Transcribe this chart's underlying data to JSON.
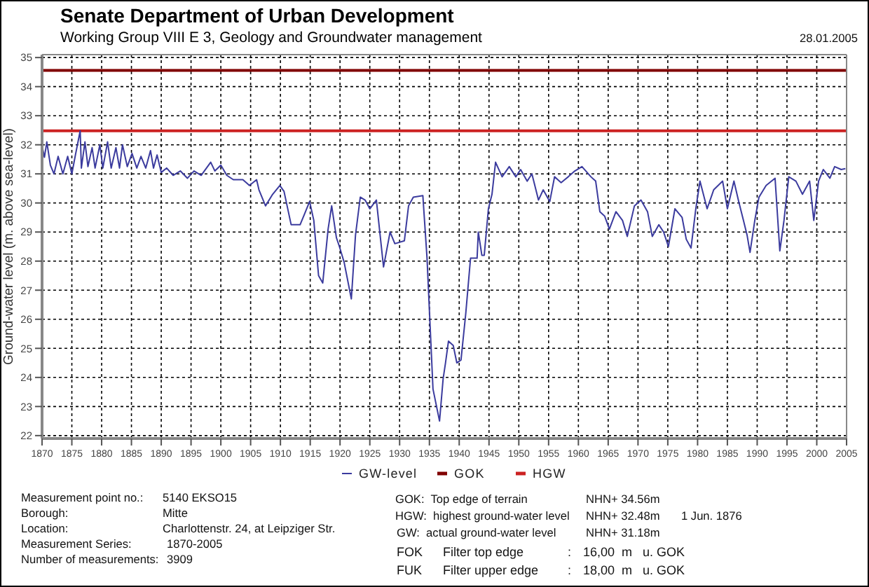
{
  "chart_data": {
    "type": "line",
    "title": "Senate Department of  Urban Development",
    "subtitle": "Working Group VIII E 3, Geology and Groundwater management",
    "ylabel": "Ground-water level (m. above sea-level)",
    "xlim": [
      1870,
      2005
    ],
    "xticks": [
      1870,
      1875,
      1880,
      1885,
      1890,
      1895,
      1900,
      1905,
      1910,
      1915,
      1920,
      1925,
      1930,
      1935,
      1940,
      1945,
      1950,
      1955,
      1960,
      1965,
      1970,
      1975,
      1980,
      1985,
      1990,
      1995,
      2000,
      2005
    ],
    "ylim": [
      21.9,
      35.1
    ],
    "yticks": [
      22,
      23,
      24,
      25,
      26,
      27,
      28,
      29,
      30,
      31,
      32,
      33,
      34,
      35
    ],
    "grid": true,
    "legend": "bottom",
    "marker": "none",
    "line_style": "solid",
    "series": [
      {
        "name": "GW-level",
        "color": "#3b3b9e",
        "x": [
          1870,
          1870.4,
          1870.8,
          1871.4,
          1872,
          1872.7,
          1873.5,
          1874.3,
          1875,
          1875.6,
          1876.4,
          1876.6,
          1877.2,
          1877.7,
          1878.4,
          1878.9,
          1879.7,
          1880.2,
          1881,
          1881.6,
          1882.4,
          1883,
          1883.5,
          1884.3,
          1885.1,
          1885.9,
          1886.6,
          1887.4,
          1888.2,
          1888.7,
          1889.3,
          1890,
          1890.9,
          1892,
          1893.2,
          1894.4,
          1895.5,
          1896.7,
          1898.3,
          1899,
          1900,
          1901,
          1902.1,
          1903.7,
          1904.8,
          1906,
          1906.4,
          1907.5,
          1908.7,
          1909.9,
          1910.6,
          1911.8,
          1913.3,
          1914.1,
          1914.9,
          1915.6,
          1916.4,
          1917.1,
          1918,
          1918.6,
          1919.4,
          1919.9,
          1920.7,
          1921.9,
          1922.6,
          1923.4,
          1924.2,
          1925,
          1926.1,
          1927.3,
          1928.4,
          1929.2,
          1930.8,
          1931.5,
          1932.3,
          1933.9,
          1934.6,
          1935.6,
          1936.7,
          1937.3,
          1937.7,
          1938.2,
          1939,
          1939.6,
          1940.3,
          1941.1,
          1941.9,
          1943,
          1943.2,
          1943.8,
          1944.2,
          1944.9,
          1945.5,
          1946.1,
          1947.2,
          1948.4,
          1949.5,
          1950.3,
          1951.4,
          1952.2,
          1953.3,
          1954.1,
          1955.2,
          1956,
          1957.1,
          1958.3,
          1959.4,
          1960.6,
          1962.1,
          1962.9,
          1963.6,
          1964.4,
          1965.2,
          1966.3,
          1967.4,
          1968.2,
          1969.4,
          1970.5,
          1971.6,
          1972.4,
          1973.5,
          1974.3,
          1975.1,
          1976.2,
          1977.4,
          1978.1,
          1978.9,
          1979.7,
          1980.4,
          1981.6,
          1982.7,
          1984.2,
          1985,
          1986.1,
          1986.9,
          1987.7,
          1988.3,
          1988.8,
          1989.6,
          1990.3,
          1991.5,
          1993,
          1993.8,
          1994.5,
          1995.3,
          1996.5,
          1997.6,
          1998.8,
          1999.5,
          2000.3,
          2001.1,
          2002.2,
          2003,
          2004.1,
          2004.8
        ],
        "values": [
          31.97,
          31.57,
          32.1,
          31.3,
          31.0,
          31.6,
          31.0,
          31.6,
          31.0,
          31.65,
          32.48,
          31.2,
          32.1,
          31.25,
          31.9,
          31.2,
          32.0,
          31.2,
          32.1,
          31.2,
          31.9,
          31.2,
          32.0,
          31.25,
          31.7,
          31.2,
          31.6,
          31.2,
          31.8,
          31.2,
          31.65,
          31.05,
          31.2,
          30.95,
          31.1,
          30.85,
          31.1,
          30.95,
          31.4,
          31.1,
          31.3,
          30.95,
          30.8,
          30.8,
          30.6,
          30.8,
          30.45,
          29.9,
          30.3,
          30.6,
          30.4,
          29.25,
          29.25,
          29.65,
          30.05,
          29.4,
          27.5,
          27.25,
          29.1,
          29.9,
          28.8,
          28.5,
          27.95,
          26.7,
          28.9,
          30.2,
          30.1,
          29.8,
          30.1,
          27.8,
          29.0,
          28.6,
          28.7,
          29.9,
          30.2,
          30.25,
          28.1,
          23.6,
          22.5,
          23.95,
          24.5,
          25.25,
          25.1,
          24.5,
          24.6,
          26.2,
          28.1,
          28.1,
          29.0,
          28.2,
          28.2,
          29.8,
          30.3,
          31.4,
          30.9,
          31.25,
          30.9,
          31.15,
          30.75,
          31.0,
          30.1,
          30.45,
          30.05,
          30.9,
          30.7,
          30.9,
          31.1,
          31.25,
          30.9,
          30.75,
          29.7,
          29.55,
          29.1,
          29.7,
          29.4,
          28.85,
          29.9,
          30.1,
          29.7,
          28.85,
          29.25,
          29.0,
          28.5,
          29.8,
          29.5,
          28.75,
          28.45,
          29.8,
          30.75,
          29.8,
          30.45,
          30.75,
          29.8,
          30.75,
          30.05,
          29.4,
          28.9,
          28.3,
          29.4,
          30.2,
          30.6,
          30.85,
          28.35,
          29.4,
          30.9,
          30.75,
          30.3,
          30.75,
          29.4,
          30.75,
          31.15,
          30.85,
          31.25,
          31.15,
          31.18
        ]
      }
    ],
    "ref_lines": [
      {
        "axis": "y",
        "value": 34.56,
        "label": "GOK",
        "color": "#800000"
      },
      {
        "axis": "y",
        "value": 32.48,
        "label": "HGW",
        "color": "#cc2222"
      }
    ],
    "annotations": [
      "28.01.2005",
      "Measurement point no.:",
      "5140 EKSO15",
      "Borough:",
      "Mitte",
      "Location:",
      "Charlottenstr. 24, at Leipziger Str.",
      "Measurement Series:",
      "1870-2005",
      "Number of measurements:",
      "3909",
      "GOK:  Top edge of terrain",
      "NHN+ 34.56m",
      "HGW:  highest ground-water level",
      "NHN+ 32.48m",
      "1 Jun. 1876",
      "GW:  actual ground-water level",
      "NHN+ 31.18m",
      "FOK",
      "Filter top edge",
      ":",
      "16,00  m   u. GOK",
      "FUK",
      "Filter upper edge",
      ":",
      "18,00  m   u. GOK"
    ]
  }
}
